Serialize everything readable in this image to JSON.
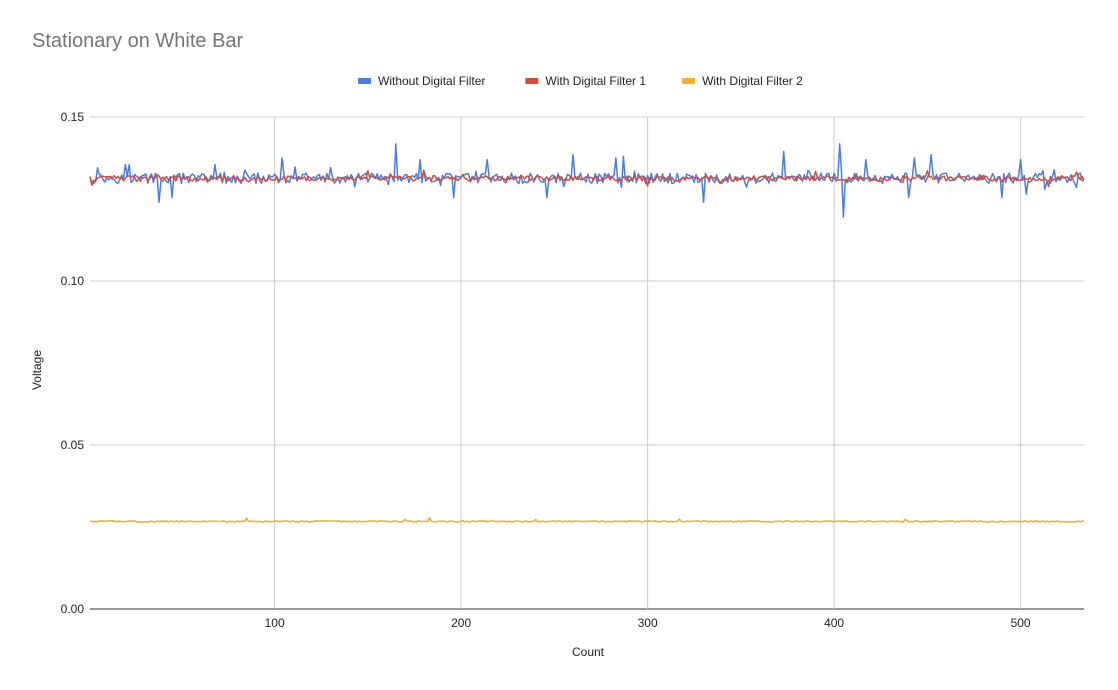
{
  "chart_data": {
    "type": "line",
    "title": "Stationary on White Bar",
    "xlabel": "Count",
    "ylabel": "Voltage",
    "xlim": [
      1,
      534
    ],
    "ylim": [
      0,
      0.15
    ],
    "x_ticks": [
      100,
      200,
      300,
      400,
      500
    ],
    "y_ticks": [
      0,
      0.05,
      0.1,
      0.15
    ],
    "x_tick_labels": [
      "100",
      "200",
      "300",
      "400",
      "500"
    ],
    "y_tick_labels": [
      "0.00",
      "0.05",
      "0.10",
      "0.15"
    ],
    "grid": true,
    "legend_position": "top",
    "series": [
      {
        "name": "Without Digital Filter",
        "color": "#4a7ee3",
        "baseline": 0.1313,
        "amplitude": 0.0016,
        "spikes": [
          {
            "x": 5,
            "y": 0.1345
          },
          {
            "x": 20,
            "y": 0.1355
          },
          {
            "x": 22,
            "y": 0.1355
          },
          {
            "x": 38,
            "y": 0.124
          },
          {
            "x": 45,
            "y": 0.1255
          },
          {
            "x": 68,
            "y": 0.1355
          },
          {
            "x": 104,
            "y": 0.1375
          },
          {
            "x": 165,
            "y": 0.1418
          },
          {
            "x": 178,
            "y": 0.137
          },
          {
            "x": 196,
            "y": 0.1255
          },
          {
            "x": 214,
            "y": 0.137
          },
          {
            "x": 246,
            "y": 0.1255
          },
          {
            "x": 260,
            "y": 0.1385
          },
          {
            "x": 283,
            "y": 0.1375
          },
          {
            "x": 287,
            "y": 0.138
          },
          {
            "x": 330,
            "y": 0.124
          },
          {
            "x": 373,
            "y": 0.1395
          },
          {
            "x": 403,
            "y": 0.1418
          },
          {
            "x": 405,
            "y": 0.1195
          },
          {
            "x": 417,
            "y": 0.137
          },
          {
            "x": 440,
            "y": 0.1255
          },
          {
            "x": 443,
            "y": 0.1375
          },
          {
            "x": 452,
            "y": 0.1385
          },
          {
            "x": 490,
            "y": 0.1255
          },
          {
            "x": 500,
            "y": 0.137
          },
          {
            "x": 503,
            "y": 0.1265
          },
          {
            "x": 513,
            "y": 0.128
          },
          {
            "x": 530,
            "y": 0.1285
          }
        ]
      },
      {
        "name": "With Digital Filter 1",
        "color": "#d64a36",
        "baseline": 0.1313,
        "amplitude": 0.0008,
        "spikes": [
          {
            "x": 2,
            "y": 0.1292
          },
          {
            "x": 150,
            "y": 0.1336
          },
          {
            "x": 180,
            "y": 0.1336
          },
          {
            "x": 300,
            "y": 0.129
          },
          {
            "x": 390,
            "y": 0.1334
          },
          {
            "x": 450,
            "y": 0.1336
          },
          {
            "x": 515,
            "y": 0.1288
          },
          {
            "x": 530,
            "y": 0.1332
          }
        ]
      },
      {
        "name": "With Digital Filter 2",
        "color": "#f2b228",
        "baseline": 0.0267,
        "amplitude": 0.00018,
        "spikes": [
          {
            "x": 85,
            "y": 0.0277
          },
          {
            "x": 170,
            "y": 0.0274
          },
          {
            "x": 183,
            "y": 0.0278
          },
          {
            "x": 240,
            "y": 0.0273
          },
          {
            "x": 317,
            "y": 0.0274
          },
          {
            "x": 438,
            "y": 0.0273
          }
        ]
      }
    ]
  }
}
